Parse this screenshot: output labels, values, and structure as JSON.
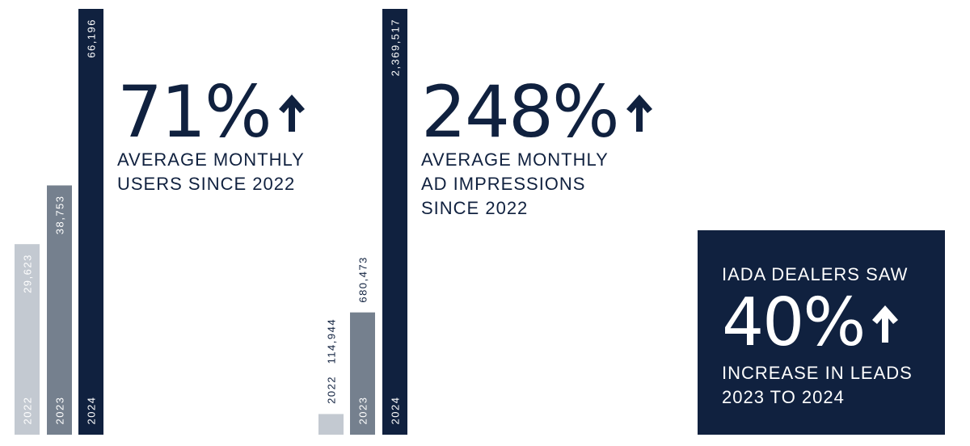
{
  "charts": {
    "chart_data": [
      {
        "type": "bar",
        "categories": [
          "2022",
          "2023",
          "2024"
        ],
        "values": [
          29623,
          38753,
          66196
        ],
        "value_labels": [
          "29,623",
          "38,753",
          "66,196"
        ],
        "colors": [
          "#c3c9d1",
          "#75808e",
          "#10213f"
        ]
      },
      {
        "type": "bar",
        "categories": [
          "2022",
          "2023",
          "2024"
        ],
        "values": [
          114944,
          680473,
          2369517
        ],
        "value_labels": [
          "114,944",
          "680,473",
          "2,369,517"
        ],
        "colors": [
          "#c3c9d1",
          "#75808e",
          "#10213f"
        ]
      }
    ]
  },
  "stats": {
    "users": {
      "percent": "71%",
      "line1": "Average Monthly",
      "line2": "Users Since 2022"
    },
    "impressions": {
      "percent": "248%",
      "line1": "Average Monthly",
      "line2": "Ad Impressions",
      "line3": "Since 2022"
    }
  },
  "callout": {
    "line1": "IADA Dealers Saw",
    "percent": "40%",
    "line2": "Increase in Leads",
    "line3": "2023 to 2024"
  },
  "icons": {
    "stat_arrow": "arrow-up-icon"
  },
  "colors": {
    "navy": "#10213f",
    "slate": "#75808e",
    "light": "#c3c9d1",
    "white": "#ffffff"
  }
}
